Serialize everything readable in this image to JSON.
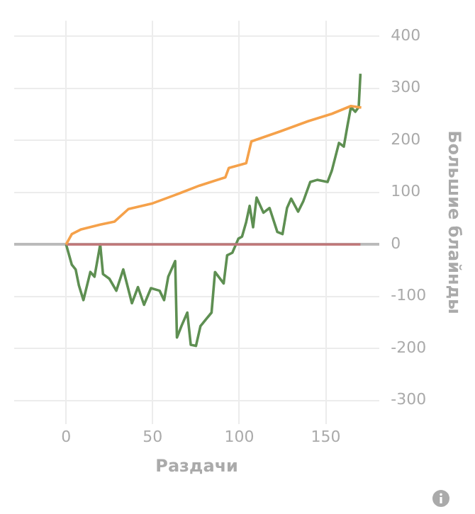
{
  "chart_data": {
    "type": "line",
    "xlabel": "Раздачи",
    "ylabel": "Большие блайнды",
    "xlim": [
      -30,
      181
    ],
    "xticks": [
      0,
      50,
      100,
      150
    ],
    "ylim": [
      -345,
      430
    ],
    "yticks": [
      -300,
      -200,
      -100,
      0,
      100,
      200,
      300,
      400
    ],
    "grid": true,
    "legend": false,
    "marker": "none",
    "series": [
      {
        "color": "#f5a14a",
        "x": [
          0,
          3.3,
          8.7,
          19.7,
          28,
          36,
          50,
          63,
          77,
          92,
          94,
          104,
          107,
          123.5,
          140,
          153.5,
          164.5,
          170.5
        ],
        "values": [
          0,
          20,
          29,
          38,
          44,
          68,
          79,
          95,
          113,
          129,
          147,
          156,
          198,
          217,
          237,
          251,
          266,
          263
        ]
      },
      {
        "color": "#c0787a",
        "x": [
          0,
          170
        ],
        "values": [
          0,
          0
        ]
      },
      {
        "color": "#5e8f52",
        "x": [
          0,
          3.3,
          5.5,
          7.4,
          10,
          14,
          16.4,
          19.7,
          21.3,
          25,
          29,
          33,
          38,
          41.5,
          45,
          49,
          54,
          56.6,
          59,
          63,
          64,
          66.6,
          70,
          72,
          75,
          77.6,
          81,
          84,
          86,
          91,
          93,
          96,
          99.5,
          101.6,
          104,
          106,
          108,
          110,
          114,
          117.5,
          122,
          125,
          127.6,
          130,
          134,
          137,
          141,
          145,
          151,
          153.5,
          157.6,
          160.4,
          162.5,
          164.5,
          167,
          169,
          170
        ],
        "values": [
          0,
          -39,
          -48,
          -79,
          -107,
          -53,
          -62,
          0,
          -57,
          -66,
          -89,
          -48,
          -113,
          -82,
          -116,
          -84,
          -89,
          -107,
          -62,
          -32,
          -179,
          -157,
          -131,
          -193,
          -195,
          -157,
          -143,
          -131,
          -53,
          -75,
          -21,
          -16,
          11,
          15,
          43,
          74,
          33,
          90,
          61,
          70,
          24,
          20,
          70,
          88,
          63,
          83,
          120,
          124,
          120,
          142,
          195,
          188,
          228,
          264,
          255,
          264,
          328
        ]
      }
    ]
  }
}
